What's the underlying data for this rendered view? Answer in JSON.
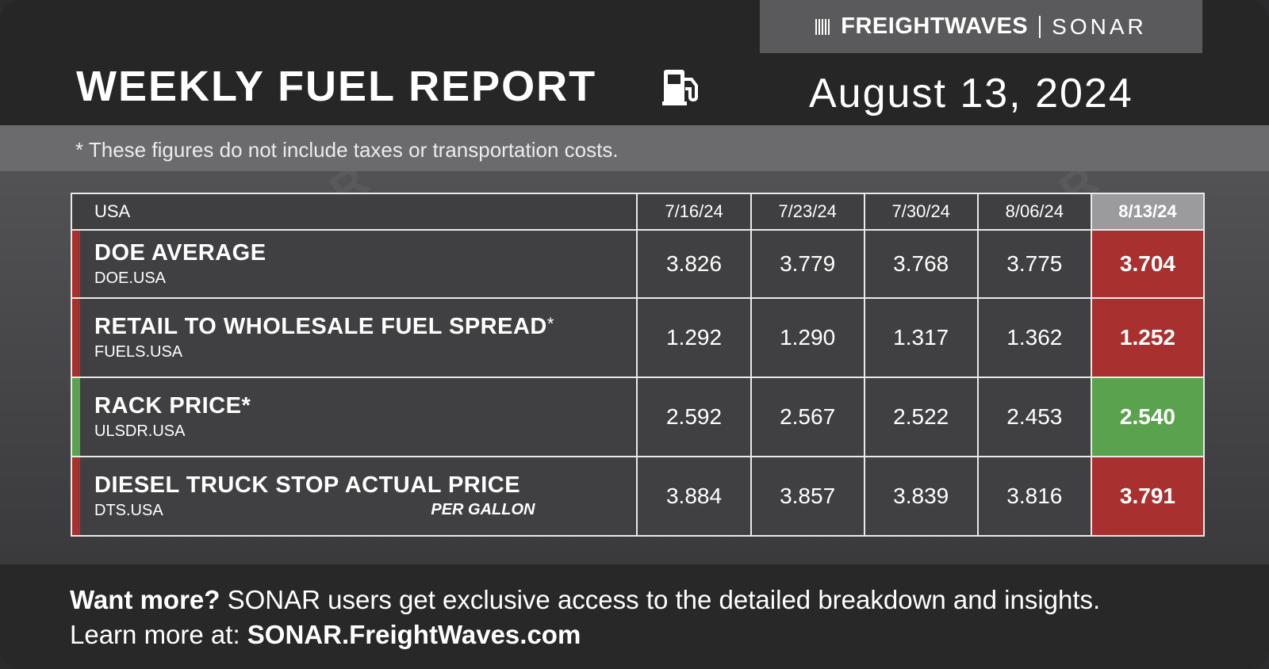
{
  "header": {
    "brand_name": "FREIGHTWAVES",
    "brand_product": "SONAR",
    "title": "WEEKLY FUEL REPORT",
    "date": "August 13, 2024",
    "pump_icon": "fuel-pump-icon"
  },
  "note": "* These figures do not include taxes or transportation costs.",
  "watermark": "SONAR",
  "colors": {
    "increase": "#a8302f",
    "decrease": "#5ba24e",
    "header_current": "#9b9b9d"
  },
  "chart_data": {
    "type": "table",
    "region_label": "USA",
    "columns": [
      "7/16/24",
      "7/23/24",
      "7/30/24",
      "8/06/24",
      "8/13/24"
    ],
    "rows": [
      {
        "name": "DOE AVERAGE",
        "code": "DOE.USA",
        "asterisk": "",
        "unit": "",
        "status": "red",
        "values": [
          "3.826",
          "3.779",
          "3.768",
          "3.775",
          "3.704"
        ]
      },
      {
        "name": "RETAIL TO WHOLESALE FUEL SPREAD",
        "code": "FUELS.USA",
        "asterisk": "*",
        "unit": "",
        "status": "red",
        "values": [
          "1.292",
          "1.290",
          "1.317",
          "1.362",
          "1.252"
        ]
      },
      {
        "name": "RACK PRICE*",
        "code": "ULSDR.USA",
        "asterisk": "",
        "unit": "",
        "status": "green",
        "values": [
          "2.592",
          "2.567",
          "2.522",
          "2.453",
          "2.540"
        ]
      },
      {
        "name": "DIESEL TRUCK STOP ACTUAL PRICE",
        "code": "DTS.USA",
        "asterisk": "",
        "unit": "PER GALLON",
        "status": "red",
        "values": [
          "3.884",
          "3.857",
          "3.839",
          "3.816",
          "3.791"
        ]
      }
    ]
  },
  "footer": {
    "lead": "Want more?",
    "text": " SONAR users get exclusive access to the detailed breakdown and insights.",
    "learn": "Learn more at: ",
    "link": "SONAR.FreightWaves.com"
  }
}
